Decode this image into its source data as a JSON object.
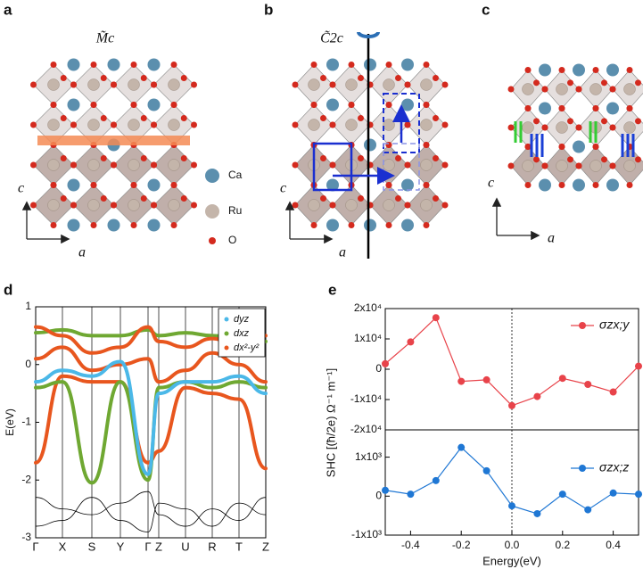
{
  "panels": {
    "a": {
      "letter": "a",
      "symbol": "M̃c",
      "axis_c": "c",
      "axis_a": "a"
    },
    "b": {
      "letter": "b",
      "symbol": "C̃2c",
      "axis_c": "c",
      "axis_a": "a"
    },
    "c": {
      "letter": "c",
      "axis_c": "c",
      "axis_a": "a"
    },
    "d": {
      "letter": "d"
    },
    "e": {
      "letter": "e"
    }
  },
  "atom_legend": [
    "Ca",
    "Ru",
    "O"
  ],
  "chart_data": [
    {
      "type": "line",
      "ylabel": "E(eV)",
      "categories": [
        "Γ",
        "X",
        "S",
        "Y",
        "Γ",
        "Z",
        "U",
        "R",
        "T",
        "Z"
      ],
      "ylim": [
        -3,
        1
      ],
      "yticks": [
        -3,
        -2,
        -1,
        0,
        1
      ],
      "series": [
        {
          "name": "dyz",
          "color": "#4bb8e8",
          "values": [
            -0.3,
            -0.1,
            -0.2,
            0.05,
            -1.9,
            -0.5,
            -0.3,
            -0.3,
            -0.2,
            -0.5
          ]
        },
        {
          "name": "dxz",
          "color": "#6fa832",
          "values": [
            -0.4,
            -0.3,
            -2.05,
            -0.3,
            -2.0,
            -0.4,
            -0.3,
            -0.4,
            -0.3,
            -0.4
          ]
        },
        {
          "name": "dx²-y²",
          "color": "#e8561e",
          "values": [
            0.65,
            0.5,
            0.2,
            0.3,
            0.65,
            0.4,
            0.3,
            0.45,
            0.3,
            0.5
          ]
        },
        {
          "color": "#e8561e",
          "values": [
            -1.7,
            -0.2,
            -0.3,
            -0.3,
            -1.7,
            -1.5,
            -0.4,
            -0.5,
            -0.6,
            -1.8
          ]
        },
        {
          "color": "#e8561e",
          "values": [
            0.1,
            0.3,
            -0.1,
            0.0,
            0.1,
            -0.3,
            -0.1,
            0.2,
            0.0,
            -0.3
          ]
        },
        {
          "color": "#6fa832",
          "values": [
            0.55,
            0.6,
            0.5,
            0.5,
            0.6,
            0.5,
            0.55,
            0.5,
            0.45,
            0.4
          ]
        },
        {
          "color": "#000000",
          "values": [
            -2.3,
            -2.5,
            -2.6,
            -2.4,
            -2.2,
            -2.6,
            -2.8,
            -2.5,
            -2.7,
            -2.3
          ]
        },
        {
          "color": "#000000",
          "values": [
            -2.8,
            -2.7,
            -2.3,
            -2.7,
            -2.9,
            -2.4,
            -2.5,
            -2.8,
            -2.4,
            -2.6
          ]
        }
      ]
    },
    {
      "type": "line",
      "ylabel": "SHC [(ħ/2e) Ω⁻¹ m⁻¹]",
      "x": [
        -0.5,
        -0.4,
        -0.3,
        -0.2,
        -0.1,
        0,
        0.1,
        0.2,
        0.3,
        0.4,
        0.5
      ],
      "xlim": [
        -0.5,
        0.5
      ],
      "ylim": [
        -20000,
        20000
      ],
      "yticks": [
        {
          "value": -20000,
          "label": "-2x10⁴"
        },
        {
          "value": -10000,
          "label": "-1x10⁴"
        },
        0,
        {
          "value": 10000,
          "label": "1x10⁴"
        },
        {
          "value": 20000,
          "label": "2x10⁴"
        }
      ],
      "series": [
        {
          "name": "σzx;y",
          "color": "#e8434a",
          "values": [
            1800,
            9000,
            17000,
            -4000,
            -3500,
            -12000,
            -9000,
            -3000,
            -5000,
            -7500,
            1000
          ]
        }
      ]
    },
    {
      "type": "line",
      "xlabel": "Energy(eV)",
      "x": [
        -0.5,
        -0.4,
        -0.3,
        -0.2,
        -0.1,
        0,
        0.1,
        0.2,
        0.3,
        0.4,
        0.5
      ],
      "xlim": [
        -0.5,
        0.5
      ],
      "xticks": [
        -0.4,
        -0.2,
        {
          "value": 0,
          "label": "0.0"
        },
        0.2,
        0.4
      ],
      "ylim": [
        -1000,
        1700
      ],
      "yticks": [
        {
          "value": -1000,
          "label": "-1x10³"
        },
        0,
        {
          "value": 1000,
          "label": "1x10³"
        }
      ],
      "series": [
        {
          "name": "σzx;z",
          "color": "#1f77d4",
          "values": [
            150,
            50,
            400,
            1250,
            650,
            -250,
            -450,
            50,
            -350,
            80,
            50
          ]
        }
      ]
    }
  ]
}
